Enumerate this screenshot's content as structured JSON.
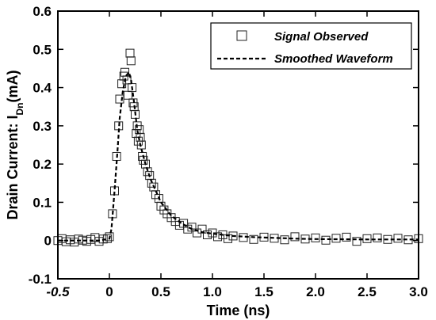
{
  "chart_data": {
    "type": "scatter",
    "xlabel": "Time (ns)",
    "ylabel_main": "Drain Current: I",
    "ylabel_sub": "Dn",
    "ylabel_unit": "(mA)",
    "xlim": [
      -0.5,
      3.0
    ],
    "ylim": [
      -0.1,
      0.6
    ],
    "xticks": [
      -0.5,
      0.0,
      0.5,
      1.0,
      1.5,
      2.0,
      2.5,
      3.0
    ],
    "xtick_labels": [
      "-0.5",
      "0",
      "0.5",
      "1.0",
      "1.5",
      "2.0",
      "2.5",
      "3.0"
    ],
    "yticks": [
      -0.1,
      0.0,
      0.1,
      0.2,
      0.3,
      0.4,
      0.5,
      0.6
    ],
    "ytick_labels": [
      "-0.1",
      "0",
      "0.1",
      "0.2",
      "0.3",
      "0.4",
      "0.5",
      "0.6"
    ],
    "grid": false,
    "legend_position": "top-right",
    "series": [
      {
        "name": "Signal Observed",
        "style": "open-square-markers",
        "x": [
          -0.5,
          -0.46,
          -0.42,
          -0.38,
          -0.34,
          -0.3,
          -0.26,
          -0.22,
          -0.18,
          -0.14,
          -0.1,
          -0.06,
          -0.02,
          0.0,
          0.03,
          0.05,
          0.07,
          0.09,
          0.1,
          0.12,
          0.14,
          0.15,
          0.17,
          0.18,
          0.2,
          0.21,
          0.22,
          0.23,
          0.24,
          0.25,
          0.26,
          0.27,
          0.28,
          0.29,
          0.3,
          0.31,
          0.32,
          0.33,
          0.35,
          0.37,
          0.39,
          0.41,
          0.43,
          0.45,
          0.48,
          0.5,
          0.53,
          0.56,
          0.6,
          0.64,
          0.68,
          0.72,
          0.76,
          0.8,
          0.85,
          0.9,
          0.95,
          1.0,
          1.05,
          1.1,
          1.15,
          1.2,
          1.3,
          1.4,
          1.5,
          1.6,
          1.7,
          1.8,
          1.9,
          2.0,
          2.1,
          2.2,
          2.3,
          2.4,
          2.5,
          2.6,
          2.7,
          2.8,
          2.9,
          3.0
        ],
        "y": [
          0.0,
          0.005,
          -0.003,
          0.002,
          -0.004,
          0.004,
          0.001,
          -0.002,
          0.003,
          0.008,
          -0.002,
          0.004,
          0.005,
          0.01,
          0.07,
          0.13,
          0.22,
          0.3,
          0.37,
          0.41,
          0.43,
          0.44,
          0.42,
          0.38,
          0.49,
          0.47,
          0.4,
          0.36,
          0.35,
          0.33,
          0.28,
          0.3,
          0.26,
          0.29,
          0.27,
          0.25,
          0.22,
          0.21,
          0.2,
          0.18,
          0.17,
          0.15,
          0.14,
          0.12,
          0.11,
          0.09,
          0.08,
          0.07,
          0.06,
          0.05,
          0.04,
          0.045,
          0.03,
          0.035,
          0.02,
          0.03,
          0.015,
          0.02,
          0.01,
          0.015,
          0.005,
          0.012,
          0.008,
          0.003,
          0.009,
          0.006,
          0.002,
          0.01,
          0.004,
          0.007,
          0.001,
          0.006,
          0.009,
          -0.002,
          0.005,
          0.007,
          0.003,
          0.006,
          0.002,
          0.005
        ]
      },
      {
        "name": "Smoothed Waveform",
        "style": "dashed-line",
        "x": [
          -0.5,
          -0.3,
          -0.1,
          0.0,
          0.02,
          0.05,
          0.08,
          0.1,
          0.13,
          0.16,
          0.19,
          0.21,
          0.24,
          0.27,
          0.3,
          0.35,
          0.4,
          0.45,
          0.5,
          0.6,
          0.7,
          0.8,
          0.9,
          1.0,
          1.2,
          1.4,
          1.6,
          1.8,
          2.0,
          2.5,
          3.0
        ],
        "y": [
          0.0,
          0.0,
          0.0,
          0.005,
          0.03,
          0.13,
          0.24,
          0.32,
          0.39,
          0.43,
          0.44,
          0.42,
          0.36,
          0.29,
          0.25,
          0.2,
          0.16,
          0.13,
          0.1,
          0.065,
          0.045,
          0.03,
          0.022,
          0.018,
          0.012,
          0.009,
          0.007,
          0.005,
          0.004,
          0.003,
          0.003
        ]
      }
    ]
  }
}
